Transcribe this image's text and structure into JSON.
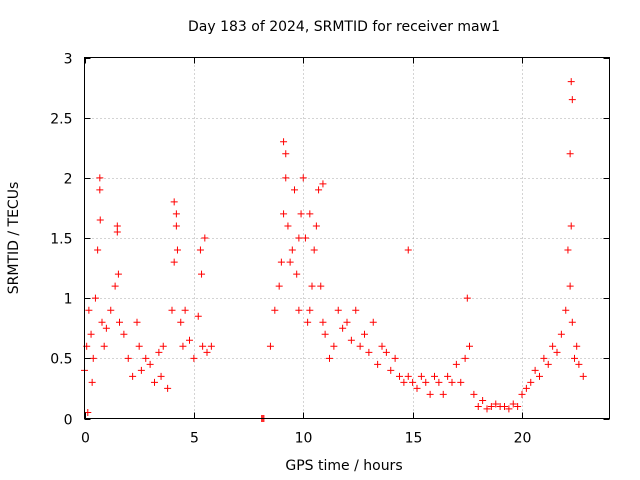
{
  "chart_data": {
    "type": "scatter",
    "title": "Day 183 of 2024, SRMTID for receiver maw1",
    "xlabel": "GPS time / hours",
    "ylabel": "SRMTID / TECUs",
    "xlim": [
      0,
      24
    ],
    "ylim": [
      0,
      3
    ],
    "x_ticks": [
      0,
      5,
      10,
      15,
      20
    ],
    "x_tick_labels": [
      "0",
      "5",
      "10",
      "15",
      "20"
    ],
    "y_ticks": [
      0,
      0.5,
      1,
      1.5,
      2,
      2.5,
      3
    ],
    "y_tick_labels": [
      "0",
      "0.5",
      "1",
      "1.5",
      "2",
      "2.5",
      "3"
    ],
    "grid": true,
    "marker": "plus",
    "color": "#ff0000",
    "series": [
      {
        "name": "SRMTID",
        "x": [
          0.0,
          0.1,
          0.2,
          0.3,
          0.4,
          0.5,
          0.6,
          0.7,
          0.8,
          0.9,
          1.0,
          1.2,
          1.4,
          1.5,
          1.6,
          1.8,
          2.0,
          2.2,
          2.4,
          2.5,
          2.6,
          2.8,
          3.0,
          3.2,
          3.4,
          3.5,
          3.6,
          3.8,
          4.0,
          4.1,
          4.2,
          4.4,
          4.5,
          4.6,
          4.8,
          5.0,
          5.2,
          5.4,
          5.5,
          5.6,
          5.8,
          0.15,
          0.35,
          0.7,
          0.72,
          1.5,
          1.55,
          4.1,
          4.2,
          4.25,
          5.3,
          5.35,
          8.1,
          8.15,
          8.2,
          8.5,
          8.7,
          8.9,
          9.0,
          9.1,
          9.2,
          9.3,
          9.4,
          9.5,
          9.6,
          9.7,
          9.8,
          9.9,
          10.0,
          10.1,
          10.2,
          10.3,
          10.4,
          10.5,
          10.6,
          10.7,
          10.8,
          10.9,
          11.0,
          11.2,
          11.4,
          11.6,
          11.8,
          12.0,
          12.2,
          12.4,
          12.6,
          12.8,
          13.0,
          13.2,
          13.4,
          13.6,
          13.8,
          14.0,
          14.2,
          14.4,
          14.6,
          14.8,
          15.0,
          15.2,
          15.4,
          15.6,
          15.8,
          16.0,
          16.2,
          16.4,
          16.6,
          16.8,
          17.0,
          17.2,
          17.4,
          17.6,
          17.8,
          18.0,
          18.2,
          18.4,
          18.6,
          18.8,
          19.0,
          19.2,
          19.4,
          19.6,
          19.8,
          20.0,
          20.2,
          20.4,
          20.6,
          20.8,
          21.0,
          21.2,
          21.4,
          21.6,
          21.8,
          22.0,
          22.1,
          22.2,
          22.25,
          22.3,
          22.4,
          22.5,
          22.6,
          22.8,
          9.1,
          9.2,
          9.8,
          10.3,
          10.9,
          14.8,
          17.5,
          22.25,
          22.3,
          22.2
        ],
        "y": [
          0.4,
          0.6,
          0.9,
          0.7,
          0.5,
          1.0,
          1.4,
          1.9,
          0.8,
          0.6,
          0.75,
          0.9,
          1.1,
          1.55,
          0.8,
          0.7,
          0.5,
          0.35,
          0.8,
          0.6,
          0.4,
          0.5,
          0.45,
          0.3,
          0.55,
          0.35,
          0.6,
          0.25,
          0.9,
          1.3,
          1.6,
          0.8,
          0.6,
          0.9,
          0.65,
          0.5,
          0.85,
          0.6,
          1.5,
          0.55,
          0.6,
          0.05,
          0.3,
          2.0,
          1.65,
          1.6,
          1.2,
          1.8,
          1.7,
          1.4,
          1.4,
          1.2,
          0.0,
          0.0,
          0.0,
          0.6,
          0.9,
          1.1,
          1.3,
          1.7,
          2.0,
          1.6,
          1.3,
          1.4,
          1.9,
          1.2,
          0.9,
          1.7,
          2.0,
          1.5,
          0.8,
          0.9,
          1.1,
          1.4,
          1.6,
          1.9,
          1.1,
          0.8,
          0.7,
          0.5,
          0.6,
          0.9,
          0.75,
          0.8,
          0.65,
          0.9,
          0.6,
          0.7,
          0.55,
          0.8,
          0.45,
          0.6,
          0.55,
          0.4,
          0.5,
          0.35,
          0.3,
          0.35,
          0.3,
          0.25,
          0.35,
          0.3,
          0.2,
          0.35,
          0.3,
          0.2,
          0.35,
          0.3,
          0.45,
          0.3,
          0.5,
          0.6,
          0.2,
          0.1,
          0.15,
          0.08,
          0.1,
          0.12,
          0.1,
          0.1,
          0.08,
          0.12,
          0.1,
          0.2,
          0.25,
          0.3,
          0.4,
          0.35,
          0.5,
          0.45,
          0.6,
          0.55,
          0.7,
          0.9,
          1.4,
          1.1,
          1.6,
          0.8,
          0.5,
          0.6,
          0.45,
          0.35,
          2.3,
          2.2,
          1.5,
          1.7,
          1.95,
          1.4,
          1.0,
          2.8,
          2.65,
          2.2
        ]
      }
    ]
  }
}
